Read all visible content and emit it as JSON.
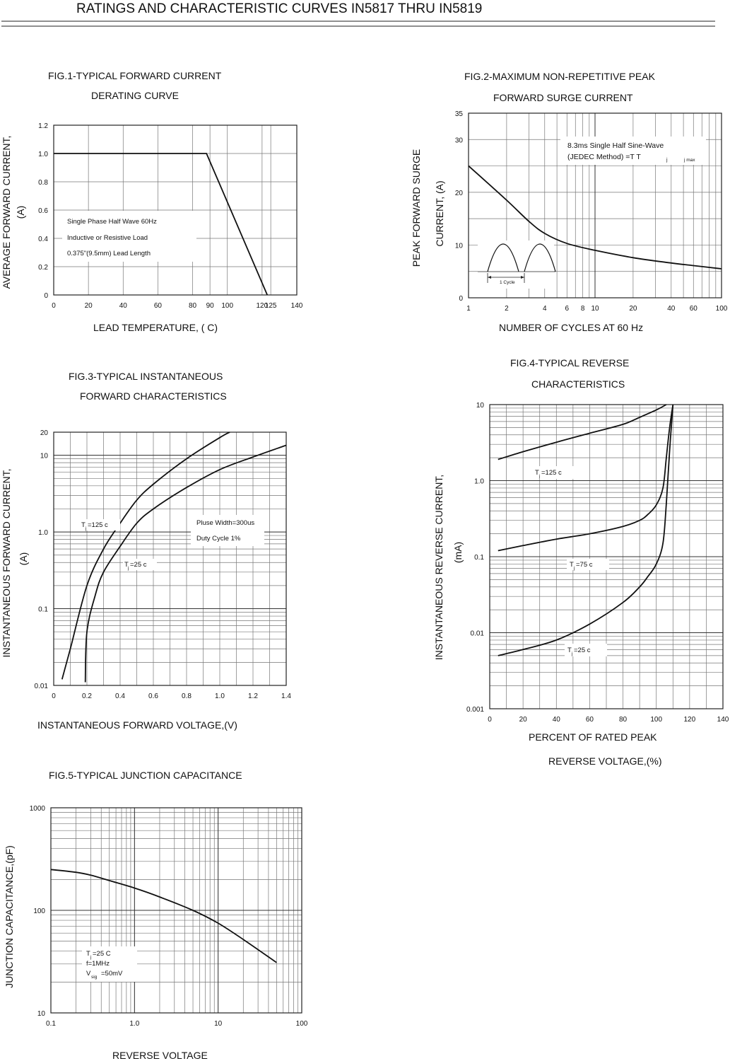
{
  "page_title": "RATINGS AND CHARACTERISTIC CURVES IN5817 THRU IN5819",
  "chart_data": [
    {
      "id": "fig1",
      "type": "line",
      "title_lines": [
        "FIG.1-TYPICAL FORWARD CURRENT",
        "DERATING CURVE"
      ],
      "xlabel": "LEAD TEMPERATURE, (      C)",
      "ylabel_lines": [
        "AVERAGE FORWARD CURRENT,",
        "(A)"
      ],
      "x_scale": "linear",
      "y_scale": "linear",
      "xlim": [
        0,
        140
      ],
      "ylim": [
        0,
        1.2
      ],
      "x_ticks": [
        0,
        20,
        40,
        60,
        80,
        90,
        100,
        120,
        125,
        140
      ],
      "y_ticks": [
        0,
        0.2,
        0.4,
        0.6,
        0.8,
        1.0,
        1.2
      ],
      "x_tick_labels": [
        "0",
        "20",
        "40",
        "60",
        "80",
        "90",
        "100",
        "120",
        "125",
        "140"
      ],
      "y_tick_labels": [
        "0",
        "0.2",
        "0.4",
        "0.6",
        "0.8",
        "1.0",
        "1.2"
      ],
      "grid": true,
      "series": [
        {
          "x": [
            0,
            88,
            123
          ],
          "y": [
            1.0,
            1.0,
            0.0
          ]
        }
      ],
      "annotations": [
        {
          "text": "Single Phase        Half Wave 60Hz"
        },
        {
          "text": "Inductive or Resistive                  Load"
        },
        {
          "text": "0.375\"(9.5mm) Lead Length"
        }
      ]
    },
    {
      "id": "fig2",
      "type": "line",
      "title_lines": [
        "FIG.2-MAXIMUM NON-REPETITIVE PEAK",
        "FORWARD SURGE CURRENT"
      ],
      "xlabel": "NUMBER OF CYCLES AT 60 Hz",
      "ylabel_lines": [
        "PEAK FORWARD SURGE",
        "CURRENT, (A)"
      ],
      "x_scale": "log",
      "y_scale": "linear",
      "xlim": [
        1,
        100
      ],
      "ylim": [
        0,
        35
      ],
      "x_ticks": [
        1,
        2,
        4,
        6,
        8,
        10,
        20,
        40,
        60,
        100
      ],
      "y_ticks": [
        0,
        10,
        20,
        30,
        35
      ],
      "x_tick_labels": [
        "1",
        "2",
        "4",
        "6",
        "8",
        "10",
        "20",
        "40",
        "60",
        "100"
      ],
      "y_tick_labels": [
        "0",
        "10",
        "20",
        "30",
        "35"
      ],
      "grid": true,
      "series": [
        {
          "x": [
            1,
            2,
            3,
            4,
            6,
            10,
            20,
            40,
            60,
            100
          ],
          "y": [
            25,
            18.5,
            14.5,
            12.2,
            10.3,
            9,
            7.6,
            6.6,
            6.1,
            5.5
          ]
        }
      ],
      "annotations": [
        {
          "text": "8.3ms Single Half Sine-Wave"
        },
        {
          "text": "(JEDEC Method)       =T         T"
        },
        {
          "text": "j"
        },
        {
          "text": "j max"
        },
        {
          "text": "1 Cycle"
        }
      ]
    },
    {
      "id": "fig3",
      "type": "line",
      "title_lines": [
        "FIG.3-TYPICAL INSTANTANEOUS",
        "FORWARD CHARACTERISTICS"
      ],
      "xlabel": "INSTANTANEOUS FORWARD VOLTAGE,(V)",
      "ylabel_lines": [
        "INSTANTANEOUS FORWARD CURRENT,",
        "(A)"
      ],
      "x_scale": "linear",
      "y_scale": "log",
      "xlim": [
        0,
        1.4
      ],
      "ylim": [
        0.01,
        20
      ],
      "x_ticks": [
        0,
        0.2,
        0.4,
        0.6,
        0.8,
        1.0,
        1.2,
        1.4
      ],
      "y_ticks": [
        0.01,
        0.1,
        1.0,
        10,
        20
      ],
      "x_tick_labels": [
        "0",
        "0.2",
        "0.4",
        "0.6",
        "0.8",
        "1.0",
        "1.2",
        "1.4"
      ],
      "y_tick_labels": [
        "0.01",
        "0.1",
        "1.0",
        "10",
        "20"
      ],
      "grid": true,
      "series": [
        {
          "x": [
            0.05,
            0.1,
            0.2,
            0.3,
            0.4,
            0.5,
            0.6,
            0.8,
            1.0,
            1.06
          ],
          "y": [
            0.012,
            0.03,
            0.2,
            0.6,
            1.3,
            2.6,
            4.2,
            9,
            17,
            20
          ]
        },
        {
          "x": [
            0.19,
            0.2,
            0.25,
            0.3,
            0.4,
            0.5,
            0.6,
            0.8,
            1.0,
            1.2,
            1.4
          ],
          "y": [
            0.011,
            0.05,
            0.15,
            0.3,
            0.65,
            1.3,
            2.0,
            3.8,
            6.5,
            9.5,
            13.5
          ]
        }
      ],
      "annotations": [
        {
          "text": "T"
        },
        {
          "text": "j"
        },
        {
          "text": "=125      c"
        },
        {
          "text": "T"
        },
        {
          "text": "j"
        },
        {
          "text": "=25       c"
        },
        {
          "text": "Pluse Width=300us"
        },
        {
          "text": "Duty Cycle 1%"
        }
      ]
    },
    {
      "id": "fig4",
      "type": "line",
      "title_lines": [
        "FIG.4-TYPICAL REVERSE",
        "CHARACTERISTICS"
      ],
      "xlabel_lines": [
        "PERCENT OF RATED PEAK",
        "REVERSE VOLTAGE,(%)"
      ],
      "ylabel_lines": [
        "INSTANTANEOUS REVERSE CURRENT,",
        "(mA)"
      ],
      "x_scale": "linear",
      "y_scale": "log",
      "xlim": [
        0,
        140
      ],
      "ylim": [
        0.001,
        10
      ],
      "x_ticks": [
        0,
        20,
        40,
        60,
        80,
        100,
        120,
        140
      ],
      "y_ticks": [
        0.001,
        0.01,
        0.1,
        1.0,
        10
      ],
      "x_tick_labels": [
        "0",
        "20",
        "40",
        "60",
        "80",
        "100",
        "120",
        "140"
      ],
      "y_tick_labels": [
        "0.001",
        "0.01",
        "0.1",
        "1.0",
        "10"
      ],
      "grid": true,
      "series": [
        {
          "x": [
            5,
            20,
            40,
            60,
            80,
            90,
            100,
            106
          ],
          "y": [
            1.9,
            2.4,
            3.2,
            4.2,
            5.5,
            6.8,
            8.5,
            10
          ]
        },
        {
          "x": [
            5,
            20,
            40,
            60,
            80,
            90,
            95,
            100,
            104,
            106,
            108,
            110
          ],
          "y": [
            0.12,
            0.14,
            0.17,
            0.2,
            0.25,
            0.3,
            0.36,
            0.48,
            0.8,
            2.0,
            5.0,
            10
          ]
        },
        {
          "x": [
            5,
            20,
            40,
            60,
            80,
            90,
            95,
            100,
            104,
            106,
            108,
            110
          ],
          "y": [
            0.005,
            0.006,
            0.008,
            0.013,
            0.025,
            0.04,
            0.055,
            0.08,
            0.15,
            0.5,
            2.5,
            10
          ]
        }
      ],
      "annotations": [
        {
          "text": "T"
        },
        {
          "text": "j"
        },
        {
          "text": "=125      c"
        },
        {
          "text": "T"
        },
        {
          "text": "j"
        },
        {
          "text": "=75       c"
        },
        {
          "text": "T"
        },
        {
          "text": "j"
        },
        {
          "text": "=25       c"
        }
      ]
    },
    {
      "id": "fig5",
      "type": "line",
      "title_lines": [
        "FIG.5-TYPICAL JUNCTION CAPACITANCE"
      ],
      "xlabel": "REVERSE VOLTAGE",
      "ylabel_lines": [
        "JUNCTION CAPACITANCE,(pF)"
      ],
      "x_scale": "log",
      "y_scale": "log",
      "xlim": [
        0.1,
        100
      ],
      "ylim": [
        10,
        1000
      ],
      "x_ticks": [
        0.1,
        1.0,
        10,
        100
      ],
      "y_ticks": [
        10,
        100,
        1000
      ],
      "x_tick_labels": [
        "0.1",
        "1.0",
        "10",
        "100"
      ],
      "y_tick_labels": [
        "10",
        "100",
        "1000"
      ],
      "grid": true,
      "series": [
        {
          "x": [
            0.1,
            0.2,
            0.3,
            0.5,
            1,
            2,
            5,
            10,
            20,
            50
          ],
          "y": [
            250,
            235,
            220,
            195,
            165,
            135,
            100,
            75,
            52,
            31
          ]
        }
      ],
      "annotations": [
        {
          "text": "T"
        },
        {
          "text": "j"
        },
        {
          "text": "=25      C"
        },
        {
          "text": "f=1MHz"
        },
        {
          "text": "V"
        },
        {
          "text": "sig"
        },
        {
          "text": "=50mV"
        }
      ]
    }
  ]
}
